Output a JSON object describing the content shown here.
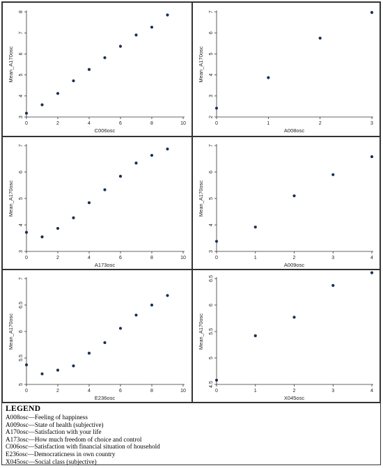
{
  "chart_data": [
    {
      "type": "scatter",
      "xlabel": "C006osc",
      "ylabel": "Mean_A170osc",
      "xlim": [
        0,
        10
      ],
      "ylim": [
        3,
        8
      ],
      "xticks": [
        0,
        2,
        4,
        6,
        8,
        10
      ],
      "yticks": [
        3,
        4,
        5,
        6,
        7,
        8
      ],
      "x": [
        0,
        1,
        2,
        3,
        4,
        5,
        6,
        7,
        8,
        9
      ],
      "y": [
        3.18,
        3.58,
        4.12,
        4.72,
        5.26,
        5.82,
        6.36,
        6.9,
        7.27,
        7.85
      ]
    },
    {
      "type": "scatter",
      "xlabel": "A008osc",
      "ylabel": "Mean_A170osc",
      "xlim": [
        0,
        3
      ],
      "ylim": [
        2,
        7
      ],
      "xticks": [
        0,
        1,
        2,
        3
      ],
      "yticks": [
        2,
        3,
        4,
        5,
        6,
        7
      ],
      "x": [
        0,
        1,
        2,
        3
      ],
      "y": [
        2.42,
        3.87,
        5.75,
        6.97
      ]
    },
    {
      "type": "scatter",
      "xlabel": "A173osc",
      "ylabel": "Mean_A170osc",
      "xlim": [
        0,
        10
      ],
      "ylim": [
        3,
        7
      ],
      "xticks": [
        0,
        2,
        4,
        6,
        8,
        10
      ],
      "yticks": [
        3,
        4,
        5,
        6,
        7
      ],
      "x": [
        0,
        1,
        2,
        3,
        4,
        5,
        6,
        7,
        8,
        9
      ],
      "y": [
        3.72,
        3.55,
        3.87,
        4.27,
        4.84,
        5.33,
        5.84,
        6.34,
        6.63,
        6.87
      ]
    },
    {
      "type": "scatter",
      "xlabel": "A009osc",
      "ylabel": "Mean_A170osc",
      "xlim": [
        0,
        4
      ],
      "ylim": [
        3,
        7
      ],
      "xticks": [
        0,
        1,
        2,
        3,
        4
      ],
      "yticks": [
        3,
        4,
        5,
        6,
        7
      ],
      "x": [
        0,
        1,
        2,
        3,
        4
      ],
      "y": [
        3.38,
        3.92,
        5.1,
        5.9,
        6.58
      ]
    },
    {
      "type": "scatter",
      "xlabel": "E236osc",
      "ylabel": "Mean_A170osc",
      "xlim": [
        0,
        10
      ],
      "ylim": [
        5,
        7
      ],
      "xticks": [
        0,
        2,
        4,
        6,
        8,
        10
      ],
      "yticks": [
        5,
        5.5,
        6,
        6.5,
        7
      ],
      "yticklabels": [
        "5",
        "5.5",
        "6",
        "6.5",
        "7"
      ],
      "x": [
        0,
        1,
        2,
        3,
        4,
        5,
        6,
        7,
        8,
        9
      ],
      "y": [
        5.37,
        5.2,
        5.27,
        5.35,
        5.59,
        5.79,
        6.06,
        6.31,
        6.5,
        6.68
      ]
    },
    {
      "type": "scatter",
      "xlabel": "X045osc",
      "ylabel": "Mean_A170osc",
      "xlim": [
        0,
        4
      ],
      "ylim": [
        4.5,
        6.5
      ],
      "xticks": [
        0,
        1,
        2,
        3,
        4
      ],
      "yticks": [
        4.5,
        5,
        5.5,
        6,
        6.5
      ],
      "yticklabels": [
        "4.5",
        "5",
        "5.5",
        "6",
        "6.5"
      ],
      "x": [
        0,
        1,
        2,
        3,
        4
      ],
      "y": [
        4.58,
        5.42,
        5.77,
        6.37,
        6.61
      ]
    }
  ],
  "legend": {
    "title": "LEGEND",
    "items": [
      "A008osc—Feeling of happiness",
      "A009osc—State of health (subjective)",
      "A170osc—Satisfaction with your life",
      "A173osc—How much freedom of choice and control",
      "C006osc—Satisfaction with financial situation of household",
      "E236osc—Democraticness in own country",
      "X045osc—Social class (subjective)"
    ]
  },
  "colors": {
    "marker": "#1a3050",
    "frame": "#333333"
  }
}
